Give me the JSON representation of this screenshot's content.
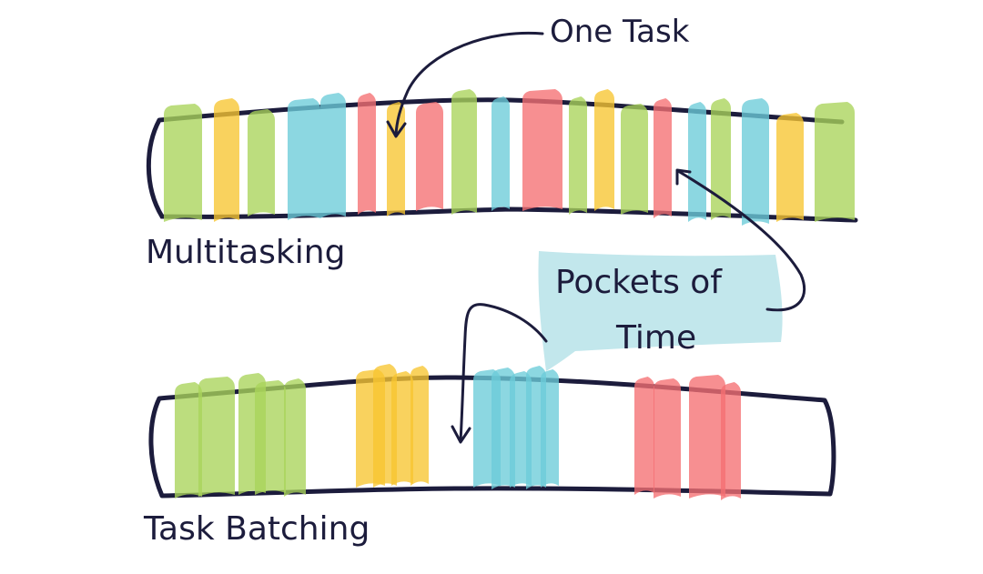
{
  "labels": {
    "one_task": "One Task",
    "multitasking": "Multitasking",
    "pockets_line1": "Pockets of",
    "pockets_line2": "Time",
    "task_batching": "Task Batching"
  },
  "colors": {
    "ink": "#1c1c3c",
    "green": "#a9d35a",
    "yellow": "#f7c531",
    "blue": "#6cccd8",
    "red": "#f57072",
    "note": "#c2e7ec"
  },
  "multitasking_sequence": [
    "green",
    "yellow",
    "green",
    "blue",
    "blue",
    "red",
    "yellow",
    "red",
    "green",
    "blue",
    "red",
    "green",
    "yellow",
    "green",
    "red",
    "blue",
    "green",
    "blue",
    "yellow",
    "green"
  ],
  "batching_groups": [
    {
      "color": "green",
      "count": 5
    },
    {
      "color": "yellow",
      "count": 4
    },
    {
      "color": "blue",
      "count": 5
    },
    {
      "color": "red",
      "count": 4
    }
  ]
}
